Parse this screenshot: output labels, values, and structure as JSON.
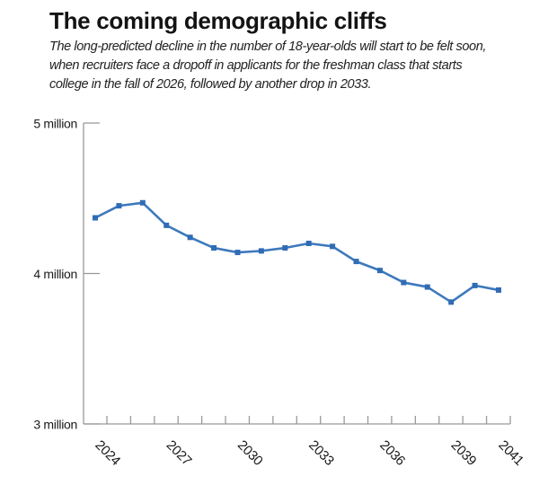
{
  "header": {
    "title": "The coming demographic cliffs",
    "subtitle_lines": [
      "The long-predicted decline in the number of 18-year-olds will start to be felt soon,",
      "when recruiters face a dropoff in applicants for the freshman class that starts",
      "college in the fall of 2026, followed by another drop in 2033."
    ]
  },
  "chart_data": {
    "type": "line",
    "title": "The coming demographic cliffs",
    "x": [
      2024,
      2025,
      2026,
      2027,
      2028,
      2029,
      2030,
      2031,
      2032,
      2033,
      2034,
      2035,
      2036,
      2037,
      2038,
      2039,
      2040,
      2041
    ],
    "series": [
      {
        "name": "Number of 18-year-olds",
        "values": [
          4.37,
          4.45,
          4.47,
          4.32,
          4.24,
          4.17,
          4.14,
          4.15,
          4.17,
          4.2,
          4.18,
          4.08,
          4.02,
          3.94,
          3.91,
          3.81,
          3.92,
          3.89
        ]
      }
    ],
    "unit": "million",
    "ylim": [
      3,
      5
    ],
    "y_tick_values": [
      5,
      4,
      3
    ],
    "y_tick_labels": [
      "5 million",
      "4 million",
      "3 million"
    ],
    "x_tick_label_years": [
      2024,
      2027,
      2030,
      2033,
      2036,
      2039,
      2041
    ],
    "x_tick_label_rotation_deg": 45,
    "grid": false,
    "legend": "none",
    "line_color": "#3d79bd",
    "marker_color": "#2f6cb4",
    "axis_color": "#999999",
    "marker": "square"
  }
}
